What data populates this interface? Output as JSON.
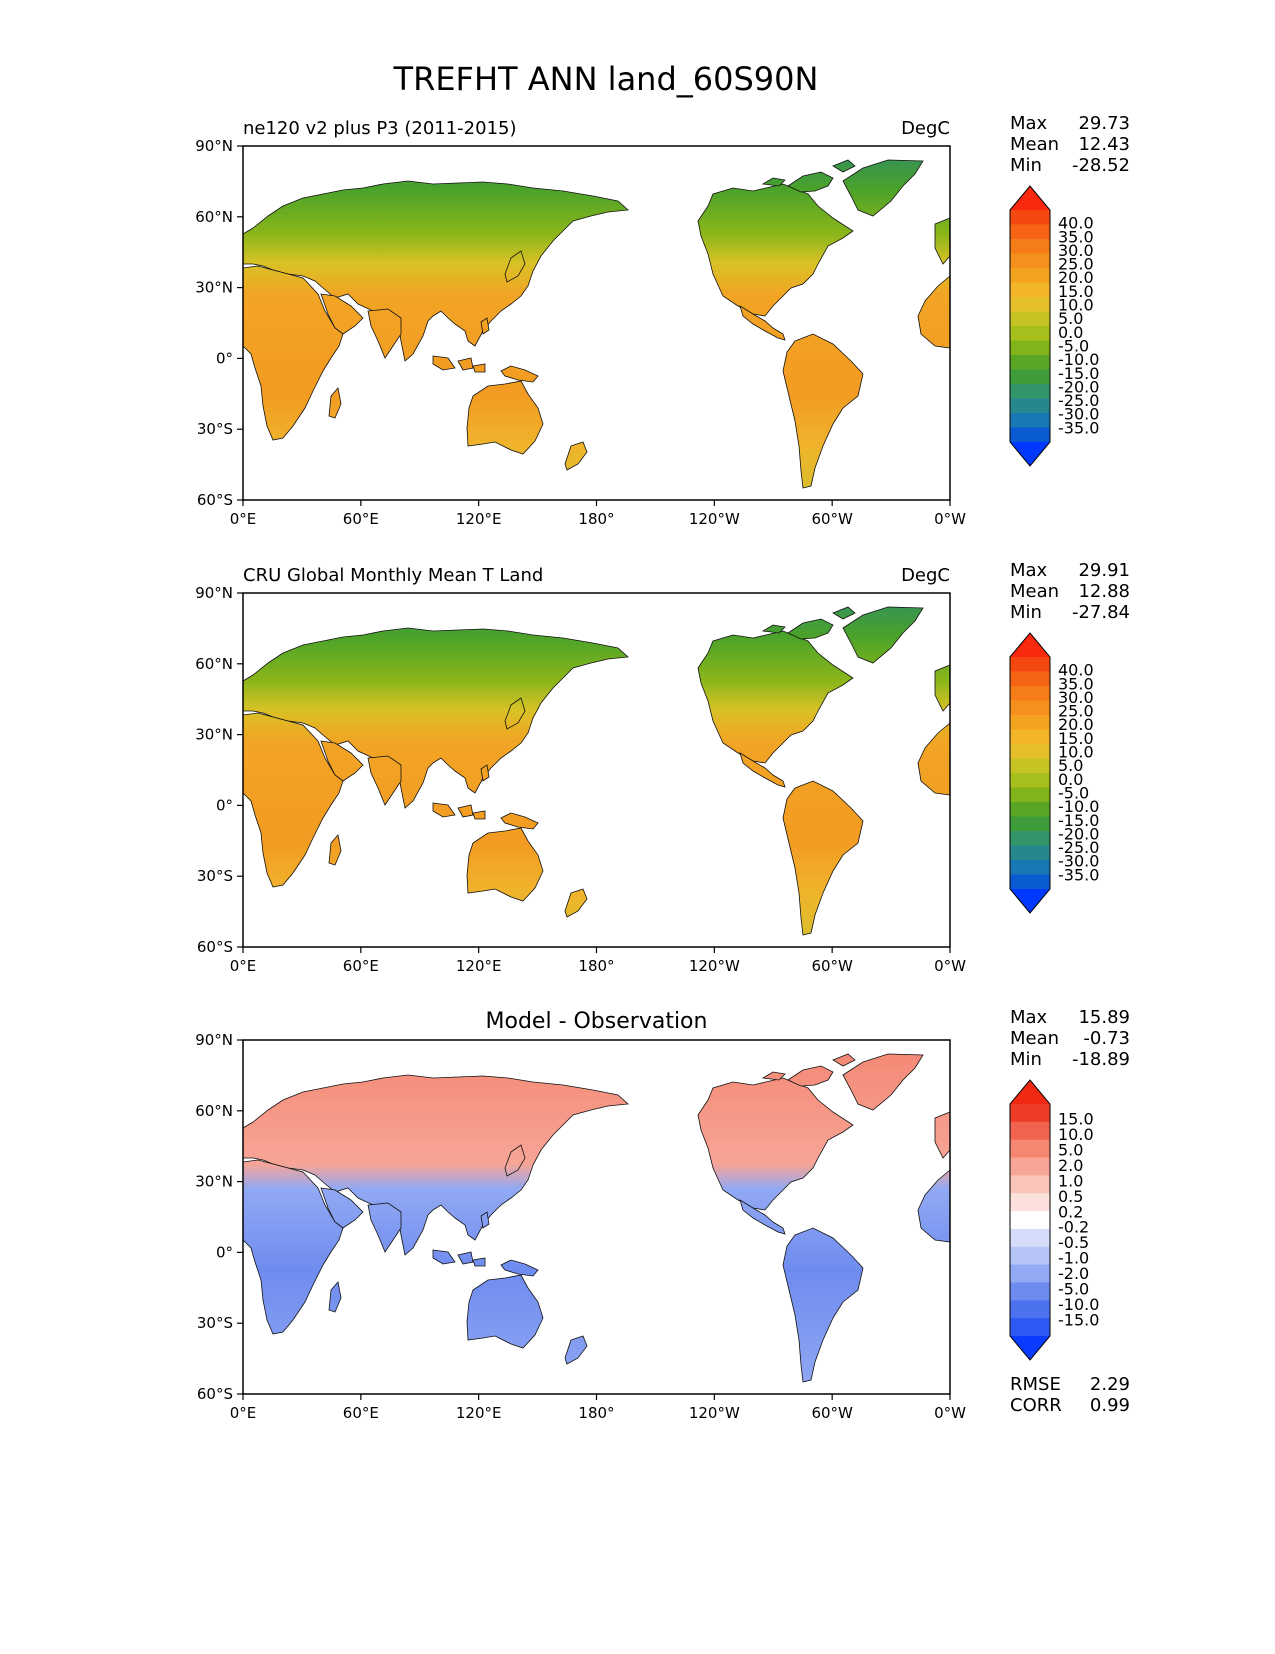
{
  "title": "TREFHT ANN land_60S90N",
  "axes": {
    "lat_ticks": [
      "90°N",
      "60°N",
      "30°N",
      "0°",
      "30°S",
      "60°S"
    ],
    "lon_ticks": [
      "0°E",
      "60°E",
      "120°E",
      "180°",
      "120°W",
      "60°W",
      "0°W"
    ]
  },
  "colors": {
    "abs_scale": [
      "#0038ff",
      "#0a5ad2",
      "#1878b4",
      "#26888c",
      "#34946a",
      "#3f9c3a",
      "#5aa624",
      "#80b418",
      "#a6bf1c",
      "#c6c424",
      "#e6c02a",
      "#f3b628",
      "#f4a320",
      "#f5901c",
      "#f57c18",
      "#f56414",
      "#f54810",
      "#fa280c"
    ],
    "diff_scale": [
      "#0a3cff",
      "#2d5af5",
      "#4c72f0",
      "#6e8cf0",
      "#92a9f3",
      "#b6c4f6",
      "#d6ddfa",
      "#ffffff",
      "#fbe0dc",
      "#f9c4ba",
      "#f7a596",
      "#f48672",
      "#f2634f",
      "#ef3c28",
      "#f02a12"
    ]
  },
  "panels": [
    {
      "title": "ne120 v2 plus P3 (2011-2015)",
      "units": "DegC",
      "stats": {
        "max_label": "Max",
        "max": "29.73",
        "mean_label": "Mean",
        "mean": "12.43",
        "min_label": "Min",
        "min": "-28.52"
      },
      "colorbar_labels": [
        "40.0",
        "35.0",
        "30.0",
        "25.0",
        "20.0",
        "15.0",
        "10.0",
        "5.0",
        "0.0",
        "-5.0",
        "-10.0",
        "-15.0",
        "-20.0",
        "-25.0",
        "-30.0",
        "-35.0"
      ]
    },
    {
      "title": "CRU Global Monthly Mean T Land",
      "units": "DegC",
      "stats": {
        "max_label": "Max",
        "max": "29.91",
        "mean_label": "Mean",
        "mean": "12.88",
        "min_label": "Min",
        "min": "-27.84"
      },
      "colorbar_labels": [
        "40.0",
        "35.0",
        "30.0",
        "25.0",
        "20.0",
        "15.0",
        "10.0",
        "5.0",
        "0.0",
        "-5.0",
        "-10.0",
        "-15.0",
        "-20.0",
        "-25.0",
        "-30.0",
        "-35.0"
      ]
    },
    {
      "title": "Model - Observation",
      "units": "",
      "stats": {
        "max_label": "Max",
        "max": "15.89",
        "mean_label": "Mean",
        "mean": "-0.73",
        "min_label": "Min",
        "min": "-18.89"
      },
      "colorbar_labels": [
        "15.0",
        "10.0",
        "5.0",
        "2.0",
        "1.0",
        "0.5",
        "0.2",
        "-0.2",
        "-0.5",
        "-1.0",
        "-2.0",
        "-5.0",
        "-10.0",
        "-15.0"
      ],
      "metrics": {
        "rmse_label": "RMSE",
        "rmse": "2.29",
        "corr_label": "CORR",
        "corr": "0.99"
      }
    }
  ],
  "chart_data": [
    {
      "type": "heatmap",
      "title": "ne120 v2 plus P3 (2011-2015)",
      "units": "DegC",
      "xlim": [
        0,
        360
      ],
      "ylim": [
        -60,
        90
      ],
      "stats": {
        "max": 29.73,
        "mean": 12.43,
        "min": -28.52
      },
      "colorbar_levels": [
        -35,
        -30,
        -25,
        -20,
        -15,
        -10,
        -5,
        0,
        5,
        10,
        15,
        20,
        25,
        30,
        35,
        40
      ]
    },
    {
      "type": "heatmap",
      "title": "CRU Global Monthly Mean T Land",
      "units": "DegC",
      "xlim": [
        0,
        360
      ],
      "ylim": [
        -60,
        90
      ],
      "stats": {
        "max": 29.91,
        "mean": 12.88,
        "min": -27.84
      },
      "colorbar_levels": [
        -35,
        -30,
        -25,
        -20,
        -15,
        -10,
        -5,
        0,
        5,
        10,
        15,
        20,
        25,
        30,
        35,
        40
      ]
    },
    {
      "type": "heatmap",
      "title": "Model - Observation",
      "xlim": [
        0,
        360
      ],
      "ylim": [
        -60,
        90
      ],
      "stats": {
        "max": 15.89,
        "mean": -0.73,
        "min": -18.89,
        "rmse": 2.29,
        "corr": 0.99
      },
      "colorbar_levels": [
        -15,
        -10,
        -5,
        -2,
        -1,
        -0.5,
        -0.2,
        0.2,
        0.5,
        1,
        2,
        5,
        10,
        15
      ]
    }
  ]
}
